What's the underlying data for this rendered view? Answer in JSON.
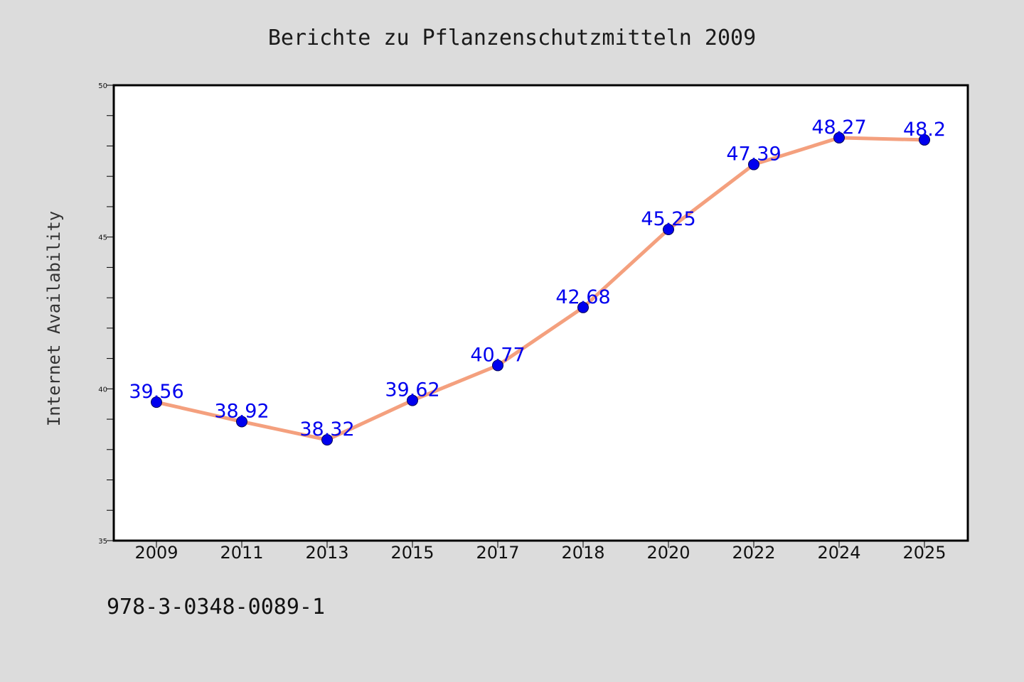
{
  "chart_data": {
    "type": "line",
    "title": "Berichte zu Pflanzenschutzmitteln 2009",
    "xlabel": "",
    "ylabel": "Internet Availability",
    "categories": [
      "2009",
      "2011",
      "2013",
      "2015",
      "2017",
      "2018",
      "2020",
      "2022",
      "2024",
      "2025"
    ],
    "series": [
      {
        "values": [
          39.56,
          38.92,
          38.32,
          39.62,
          40.77,
          42.68,
          45.25,
          47.39,
          48.27,
          48.2
        ],
        "data_labels": [
          "39.56",
          "38.92",
          "38.32",
          "39.62",
          "40.77",
          "42.68",
          "45.25",
          "47.39",
          "48.27",
          "48.2"
        ]
      }
    ],
    "ylim": [
      35,
      50
    ],
    "y_major_ticks": [
      35,
      40,
      45,
      50
    ],
    "y_minor_step": 1,
    "grid": false,
    "line_color": "#f4a07e",
    "marker_color": "#0000ee",
    "label_color": "#0000ee",
    "background_color": "#dcdcdc",
    "plot_background_color": "#ffffff"
  },
  "footer": {
    "code": "978-3-0348-0089-1"
  }
}
